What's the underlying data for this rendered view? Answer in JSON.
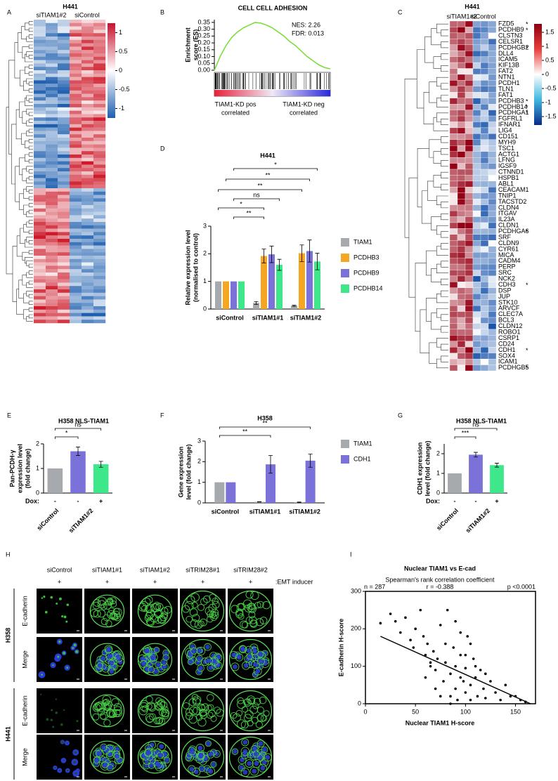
{
  "letters": [
    "A",
    "B",
    "C",
    "D",
    "E",
    "F",
    "G",
    "H",
    "I"
  ],
  "heatmap_a": {
    "title": "H441",
    "columns": [
      "siTIAM1#2",
      "siControl"
    ],
    "colorbar_lim": [
      -1.25,
      1.25
    ],
    "colorbar_ticks": [
      1,
      0.5,
      0,
      -0.5,
      -1
    ]
  },
  "heatmap_c": {
    "title": "H441",
    "columns": [
      "siTIAM1#2",
      "siControl"
    ],
    "colorbar_lim": [
      -1.8,
      1.8
    ],
    "colorbar_ticks": [
      1.5,
      1,
      0.5,
      0,
      -0.5,
      -1,
      -1.5
    ],
    "genes": [
      "FZD5",
      "PCDHB9",
      "CLSTN3",
      "CELSR1",
      "PCDHGB2",
      "DLL4",
      "ICAM5",
      "KIF13B",
      "FAT2",
      "NTN1",
      "PCDH1",
      "TLN1",
      "FAT1",
      "PCDHB3",
      "PCDHB14",
      "PCDHGA1",
      "FGFRL1",
      "IFNAR1",
      "LIG4",
      "CD151",
      "MYH9",
      "TSC1",
      "ACTG1",
      "LFNG",
      "IGSF9",
      "CTNND1",
      "HSPB1",
      "ABL1",
      "CEACAM1",
      "TNIP1",
      "TACSTD2",
      "CLDN4",
      "ITGAV",
      "IL23A",
      "CLDN1",
      "PCDHGA6",
      "SRF",
      "CLDN9",
      "CYR61",
      "MICA",
      "CADM4",
      "PERP",
      "SRC",
      "NCK2",
      "CDH3",
      "DSP",
      "JUP",
      "STK10",
      "ARVCF",
      "CLEC7A",
      "BCL3",
      "CLDN12",
      "ROBO1",
      "CSRP1",
      "CD24",
      "CDH1",
      "SOX4",
      "ICAM1",
      "PCDHGB5"
    ],
    "stars": [
      "*",
      "*",
      null,
      null,
      "*",
      null,
      null,
      null,
      null,
      null,
      null,
      null,
      null,
      "*",
      "*",
      "*",
      null,
      null,
      null,
      null,
      null,
      null,
      null,
      null,
      null,
      null,
      null,
      null,
      null,
      null,
      null,
      null,
      null,
      null,
      null,
      "*",
      null,
      null,
      null,
      null,
      null,
      null,
      null,
      null,
      "*",
      null,
      null,
      null,
      null,
      null,
      null,
      null,
      null,
      null,
      null,
      "*",
      null,
      null,
      "*"
    ]
  },
  "panel_h": {
    "columns": [
      "siControl",
      "siTIAM1#1",
      "siTIAM1#2",
      "siTRIM28#1",
      "siTRIM28#2"
    ],
    "treatment": [
      "+",
      "+",
      "+",
      "+",
      "+"
    ],
    "treatment_label": ":EMT inducer",
    "rows": [
      {
        "cell_line": "H358",
        "stains": [
          "E-cadherin",
          "Merge"
        ]
      },
      {
        "cell_line": "H441",
        "stains": [
          "E-cadherin",
          "Merge"
        ]
      }
    ]
  },
  "chart_data": [
    {
      "type": "gsea",
      "title": "CELL CELL ADHESION",
      "stats": [
        "NES: 2.26",
        "FDR: 0.013"
      ],
      "y_label": [
        "Enrichment",
        "score (ES)"
      ],
      "color": "#77dd33",
      "values": [
        0,
        0.1,
        0.18,
        0.24,
        0.28,
        0.31,
        0.33,
        0.35,
        0.345,
        0.33,
        0.31,
        0.28,
        0.25,
        0.21,
        0.18,
        0.14,
        0.1,
        0.07,
        0.04,
        0.02,
        0.01
      ],
      "ylim": [
        0,
        0.37
      ],
      "yticks": [
        {
          "value": 0,
          "label": "0.00"
        },
        {
          "value": 0.05,
          "label": "0.05"
        },
        {
          "value": 0.1,
          "label": "0.10"
        },
        {
          "value": 0.15,
          "label": "0.15"
        },
        {
          "value": 0.2,
          "label": "0.20"
        },
        {
          "value": 0.25,
          "label": "0.25"
        },
        {
          "value": 0.3,
          "label": "0.30"
        },
        {
          "value": 0.35,
          "label": "0.35"
        }
      ],
      "x_labels": [
        [
          "TIAM1-KD pos",
          "correlated"
        ],
        [
          "TIAM1-KD neg",
          "correlated"
        ]
      ]
    },
    {
      "type": "grouped_bar",
      "title": "H441",
      "y_label": [
        "Relative expression level",
        "(normalised to control)"
      ],
      "categories": [
        "siControl",
        "siTIAM1#1",
        "siTIAM1#2"
      ],
      "series": [
        {
          "name": "TIAM1",
          "color": "#a6a9ad",
          "values": [
            1,
            0.22,
            0.12
          ],
          "errors": [
            0,
            0.05,
            0.02
          ]
        },
        {
          "name": "PCDHB3",
          "color": "#f5a623",
          "values": [
            1,
            1.92,
            2.02
          ],
          "errors": [
            0,
            0.25,
            0.3
          ]
        },
        {
          "name": "PCDHB9",
          "color": "#7b72d9",
          "values": [
            1,
            1.98,
            2.1
          ],
          "errors": [
            0,
            0.3,
            0.4
          ]
        },
        {
          "name": "PCDHB14",
          "color": "#3ee88a",
          "values": [
            1,
            1.6,
            1.72
          ],
          "errors": [
            0,
            0.2,
            0.3
          ]
        }
      ],
      "ylim": [
        0,
        3
      ],
      "yticks": [
        0,
        1,
        2,
        3
      ],
      "annotations": [
        "*",
        "**",
        "**",
        "ns",
        "*",
        "**"
      ]
    },
    {
      "type": "bar",
      "title": "H358 NLS-TIAM1",
      "y_label": [
        "Pan-PCDH-γ",
        "expression level",
        "(fold change)"
      ],
      "categories": [
        "siControl",
        "siTIAM1#2",
        null
      ],
      "colors": [
        "#a6a9ad",
        "#7b72d9",
        "#3ee88a"
      ],
      "values": [
        1,
        1.7,
        1.17
      ],
      "errors": [
        0,
        0.17,
        0.12
      ],
      "dox_label": "Dox:",
      "dox": [
        "-",
        "-",
        "+"
      ],
      "ylim": [
        0,
        2
      ],
      "yticks": [
        0,
        1,
        2
      ],
      "annotations": [
        "*",
        "ns"
      ]
    },
    {
      "type": "grouped_bar",
      "title": "H358",
      "y_label": [
        "Gene expression",
        "level (fold change)"
      ],
      "categories": [
        "siControl",
        "siTIAM1#1",
        "siTIAM1#2"
      ],
      "series": [
        {
          "name": "TIAM1",
          "color": "#a6a9ad",
          "values": [
            1,
            0.05,
            0.03
          ],
          "errors": [
            0,
            0.01,
            0.01
          ]
        },
        {
          "name": "CDH1",
          "color": "#7b72d9",
          "values": [
            1,
            1.87,
            2.05
          ],
          "errors": [
            0,
            0.43,
            0.32
          ]
        }
      ],
      "ylim": [
        0,
        3
      ],
      "yticks": [
        0,
        1,
        2,
        3
      ],
      "annotations": [
        "**",
        "**"
      ]
    },
    {
      "type": "bar",
      "title": "H358 NLS-TIAM1",
      "y_label": [
        "CDH1 expression",
        "level (fold change)"
      ],
      "categories": [
        "siControl",
        "siTIAM1#2",
        null
      ],
      "colors": [
        "#a6a9ad",
        "#7b72d9",
        "#3ee88a"
      ],
      "values": [
        1,
        1.95,
        1.42
      ],
      "errors": [
        0,
        0.12,
        0.1
      ],
      "dox_label": "Dox:",
      "dox": [
        "-",
        "-",
        "+"
      ],
      "ylim": [
        0,
        2.5
      ],
      "yticks": [
        0,
        1,
        2
      ],
      "annotations": [
        "***",
        "ns"
      ]
    },
    {
      "type": "scatter",
      "title": "Nuclear TIAM1 vs E-cad",
      "subtitle": "Spearman's rank correlation coefficient",
      "stats": [
        "n = 287",
        "r = -0.388",
        "p <0.0001"
      ],
      "x_label": "Nuclear TIAM1 H-score",
      "y_label": [
        "E-cadherin H-score"
      ],
      "color": "#000000",
      "x": [
        15,
        25,
        30,
        35,
        40,
        45,
        48,
        50,
        55,
        58,
        60,
        62,
        65,
        68,
        70,
        72,
        75,
        78,
        80,
        82,
        85,
        85,
        88,
        90,
        90,
        92,
        95,
        95,
        98,
        100,
        100,
        102,
        105,
        105,
        108,
        110,
        112,
        115,
        118,
        120,
        125,
        130,
        135,
        140,
        145,
        150,
        155,
        160,
        60,
        70,
        80,
        90,
        100,
        110,
        75,
        95,
        85,
        65,
        105,
        120
      ],
      "y": [
        215,
        240,
        220,
        190,
        230,
        170,
        150,
        200,
        250,
        180,
        130,
        160,
        100,
        140,
        90,
        120,
        210,
        60,
        110,
        250,
        80,
        20,
        150,
        40,
        100,
        10,
        190,
        130,
        60,
        95,
        30,
        180,
        50,
        10,
        120,
        70,
        20,
        90,
        40,
        15,
        60,
        30,
        10,
        50,
        20,
        20,
        10,
        5,
        70,
        40,
        160,
        220,
        130,
        100,
        20,
        70,
        0,
        110,
        160,
        80
      ],
      "trend": {
        "x": [
          15,
          165
        ],
        "y": [
          180,
          0
        ]
      },
      "xlim": [
        0,
        170
      ],
      "ylim": [
        0,
        300
      ],
      "xticks": [
        0,
        50,
        100,
        150
      ],
      "yticks": [
        0,
        100,
        200,
        300
      ]
    }
  ]
}
